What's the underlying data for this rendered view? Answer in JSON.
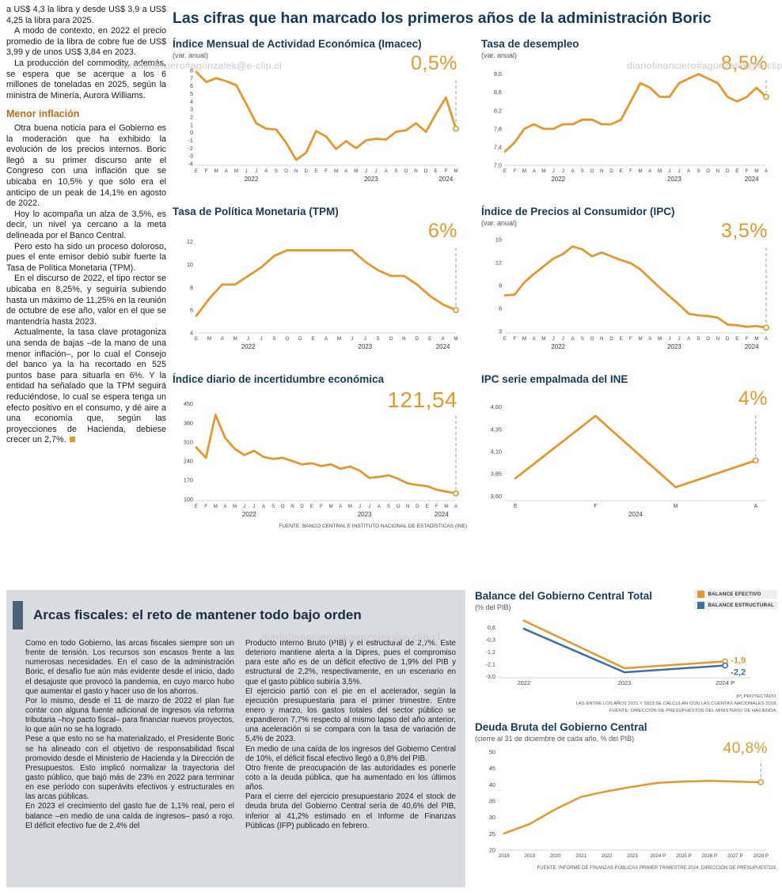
{
  "watermark": "diariofinanciero#agonzalek@e-clip.cl",
  "colors": {
    "accent_orange": "#E2982F",
    "line_blue": "#3F6F9E",
    "title_navy": "#14395E",
    "heading_orange": "#BC6C1C",
    "panel_gray": "#D9DCE1",
    "bar_slate": "#4A6377"
  },
  "left_article": {
    "top_paragraphs": [
      "a US$ 4,3 la libra y desde US$ 3,9 a US$ 4,25 la libra para 2025.",
      "A modo de contexto, en 2022 el precio promedio de la libra de cobre fue de US$ 3,99 y de unos US$ 3,84 en 2023.",
      "La producción del commodity, además, se espera que se acerque a los 6 millones de toneladas en 2025, según la ministra de Minería, Aurora Williams."
    ],
    "section_heading": "Menor inflación",
    "bottom_paragraphs": [
      "Otra buena noticia para el Gobierno es la moderación que ha exhibido la evolución de los precios internos. Boric llegó a su primer discurso ante el Congreso con una inflación que se ubicaba en 10,5% y que sólo era el anticipo de un peak de 14,1% en agosto de 2022.",
      "Hoy lo acompaña un alza de 3,5%, es decir, un nivel ya cercano a la meta delineada por el Banco Central.",
      "Pero esto ha sido un proceso doloroso, pues el ente emisor debió subir fuerte la Tasa de Política Monetaria (TPM).",
      "En el discurso de 2022, el tipo rector se ubicaba en 8,25%, y seguiría subiendo hasta un máximo de 11,25% en la reunión de octubre de ese año, valor en el que se mantendría hasta 2023.",
      "Actualmente, la tasa clave protagoniza una senda de bajas –de la mano de una menor inflación–, por lo cual el Consejo del banco ya la ha recortado en 525 puntos base para situarla en 6%. Y la entidad ha señalado que la TPM seguirá reduciéndose, lo cual se espera tenga un efecto positivo en el consumo, y dé aire a una economía que, según las proyecciones de Hacienda, debiese crecer un 2,7%."
    ]
  },
  "main": {
    "title": "Las cifras que han marcado los primeros años de la administración Boric",
    "source_note": "FUENTE: BANCO CENTRAL E INSTITUTO NACIONAL DE ESTADÍSTICAS (INE)"
  },
  "arcas": {
    "title": "Arcas fiscales: el reto de mantener todo bajo orden",
    "col1": [
      "Como en todo Gobierno, las arcas fiscales siempre son un frente de tensión. Los recursos son escasos frente a las numerosas necesidades. En el caso de la administración Boric, el desafío fue aún más evidente desde el inicio, dado el desajuste que provocó la pandemia, en cuyo marco hubo que aumentar el gasto y hacer uso de los ahorros.",
      "Por lo mismo, desde el 11 de marzo de 2022 el plan fue contar con alguna fuente adicional de ingresos vía reforma tributaria –hoy pacto fiscal– para financiar nuevos proyectos, lo que aún no se ha logrado.",
      "Pese a que esto no se ha materializado, el Presidente Boric se ha alineado con el objetivo de responsabilidad fiscal promovido desde el Ministerio de Hacienda y la Dirección de Presupuestos. Esto implicó normalizar la trayectoria del gasto público, que bajó más de 23% en 2022 para terminar en ese período con superávits efectivos y estructurales en las arcas públicas.",
      "En 2023 el crecimiento del gasto fue de 1,1% real, pero el balance –en medio de una caída de ingresos– pasó a rojo. El déficit efectivo fue de 2,4% del"
    ],
    "col2": [
      "Producto Interno Bruto (PIB) y el estructural de 2,7%. Este deterioro mantiene alerta a la Dipres, pues el compromiso para este año es de un déficit efectivo de 1,9% del PIB y estructural de 2,2%, respectivamente, en un escenario en que el gasto público subiría 3,5%.",
      "El ejercicio partió con el pie en el acelerador, según la ejecución presupuestaria para el primer trimestre. Entre enero y marzo, los gastos totales del sector público se expandieron 7,7% respecto al mismo lapso del año anterior, una aceleración si se compara con la tasa de variación de 5,4% de 2023.",
      "En medio de una caída de los ingresos del Gobierno Central de 10%, el déficit fiscal efectivo llegó a 0,8% del PIB.",
      "Otro frente de preocupación de las autoridades es ponerle coto a la deuda pública, que ha aumentado en los últimos años.",
      "Para el cierre del ejercicio presupuestario 2024 el stock de deuda bruta del Gobierno Central sería de 40,6% del PIB, inferior al 41,2% estimado en el Informe de Finanzas Públicas (IFP) publicado en febrero."
    ]
  },
  "chart_data": [
    {
      "id": "imacec",
      "type": "line",
      "title": "Índice Mensual de Actividad Económica (Imacec)",
      "subtitle": "(var. anual)",
      "highlight": "0,5%",
      "ylim": [
        -4.2,
        8.4
      ],
      "yticks": [
        {
          "v": 8,
          "label": "8"
        },
        {
          "v": 7,
          "label": "7"
        },
        {
          "v": 6,
          "label": "6"
        },
        {
          "v": 5,
          "label": "5"
        },
        {
          "v": 4,
          "label": "4"
        },
        {
          "v": 3,
          "label": "3"
        },
        {
          "v": 2,
          "label": "2"
        },
        {
          "v": 1,
          "label": "1"
        },
        {
          "v": 0,
          "label": "0"
        },
        {
          "v": -1,
          "label": "-1"
        },
        {
          "v": -2,
          "label": "-2"
        },
        {
          "v": -3,
          "label": "-3"
        },
        {
          "v": -4,
          "label": "-4"
        }
      ],
      "x_labels": [
        "E",
        "F",
        "M",
        "A",
        "M",
        "J",
        "J",
        "A",
        "S",
        "O",
        "N",
        "D",
        "E",
        "F",
        "M",
        "A",
        "M",
        "J",
        "J",
        "A",
        "S",
        "O",
        "N",
        "D",
        "E",
        "F",
        "M"
      ],
      "years": [
        {
          "label": "2022",
          "from": 0,
          "to": 11
        },
        {
          "label": "2023",
          "from": 12,
          "to": 23
        },
        {
          "label": "2024",
          "from": 24,
          "to": 26
        }
      ],
      "x_label_size": 6.2,
      "series": [
        {
          "name": "Imacec",
          "color": "#E2982F",
          "width": 2.8,
          "values": [
            7.8,
            6.5,
            7.0,
            6.6,
            6.1,
            3.7,
            1.2,
            0.5,
            0.4,
            -1.3,
            -3.5,
            -2.6,
            0.2,
            -0.5,
            -2.1,
            -1.1,
            -2.0,
            -1.0,
            -0.8,
            -0.9,
            0.1,
            0.3,
            1.2,
            0.1,
            2.4,
            4.5,
            0.5
          ]
        }
      ]
    },
    {
      "id": "desempleo",
      "type": "line",
      "title": "Tasa de desempleo",
      "subtitle": "(var. anual)",
      "highlight": "8,5%",
      "ylim": [
        7.0,
        9.15
      ],
      "yticks": [
        {
          "v": 9.0,
          "label": "9,0"
        },
        {
          "v": 8.6,
          "label": "8,6"
        },
        {
          "v": 8.2,
          "label": "8,2"
        },
        {
          "v": 7.8,
          "label": "7,8"
        },
        {
          "v": 7.4,
          "label": "7,4"
        },
        {
          "v": 7.0,
          "label": "7,0"
        }
      ],
      "x_labels": [
        "E",
        "F",
        "M",
        "A",
        "M",
        "J",
        "J",
        "A",
        "S",
        "O",
        "N",
        "D",
        "E",
        "F",
        "M",
        "A",
        "M",
        "J",
        "J",
        "A",
        "S",
        "O",
        "N",
        "D",
        "E",
        "F",
        "M",
        "A"
      ],
      "years": [
        {
          "label": "2022",
          "from": 0,
          "to": 11
        },
        {
          "label": "2023",
          "from": 12,
          "to": 23
        },
        {
          "label": "2024",
          "from": 24,
          "to": 27
        }
      ],
      "x_label_size": 6.2,
      "series": [
        {
          "name": "Tasa de desempleo",
          "color": "#E2982F",
          "width": 2.8,
          "values": [
            7.3,
            7.5,
            7.8,
            7.9,
            7.8,
            7.8,
            7.9,
            7.9,
            8.0,
            8.0,
            7.9,
            7.9,
            8.0,
            8.4,
            8.8,
            8.7,
            8.5,
            8.5,
            8.8,
            8.9,
            9.0,
            8.9,
            8.8,
            8.5,
            8.4,
            8.5,
            8.7,
            8.5
          ]
        }
      ]
    },
    {
      "id": "tpm",
      "type": "line",
      "title": "Tasa de Política Monetaria (TPM)",
      "highlight": "6%",
      "ylim": [
        4,
        12.6
      ],
      "yticks": [
        {
          "v": 12,
          "label": "12"
        },
        {
          "v": 10,
          "label": "10"
        },
        {
          "v": 8,
          "label": "8"
        },
        {
          "v": 6,
          "label": "6"
        },
        {
          "v": 4,
          "label": "4"
        }
      ],
      "x_labels": [
        "E",
        "M",
        "A",
        "M",
        "J",
        "J",
        "S",
        "O",
        "D",
        "E",
        "A",
        "M",
        "J",
        "J",
        "S",
        "O",
        "N",
        "D",
        "E",
        "A",
        "M"
      ],
      "years": [
        {
          "label": "2022",
          "from": 0,
          "to": 8
        },
        {
          "label": "2023",
          "from": 9,
          "to": 17
        },
        {
          "label": "2024",
          "from": 18,
          "to": 20
        }
      ],
      "x_label_size": 6.2,
      "series": [
        {
          "name": "TPM",
          "color": "#E2982F",
          "width": 2.8,
          "values": [
            5.5,
            7.0,
            8.25,
            8.25,
            9.0,
            9.75,
            10.75,
            11.25,
            11.25,
            11.25,
            11.25,
            11.25,
            11.25,
            10.25,
            9.5,
            9.0,
            9.0,
            8.25,
            7.25,
            6.5,
            6.0
          ]
        }
      ]
    },
    {
      "id": "ipc",
      "type": "line",
      "title": "Índice de Precios al Consumidor (IPC)",
      "subtitle": "(var. anual)",
      "highlight": "3,5%",
      "ylim": [
        2.8,
        15.6
      ],
      "yticks": [
        {
          "v": 15,
          "label": "15"
        },
        {
          "v": 12,
          "label": "12"
        },
        {
          "v": 9,
          "label": "9"
        },
        {
          "v": 6,
          "label": "6"
        },
        {
          "v": 3,
          "label": "3"
        }
      ],
      "x_labels": [
        "E",
        "F",
        "M",
        "A",
        "M",
        "J",
        "J",
        "A",
        "S",
        "O",
        "N",
        "D",
        "E",
        "F",
        "M",
        "A",
        "M",
        "J",
        "J",
        "A",
        "S",
        "O",
        "N",
        "D",
        "E",
        "F",
        "M",
        "A"
      ],
      "years": [
        {
          "label": "2022",
          "from": 0,
          "to": 11
        },
        {
          "label": "2023",
          "from": 12,
          "to": 23
        },
        {
          "label": "2024",
          "from": 24,
          "to": 27
        }
      ],
      "x_label_size": 6.2,
      "series": [
        {
          "name": "IPC",
          "color": "#E2982F",
          "width": 2.8,
          "values": [
            7.7,
            7.8,
            9.4,
            10.5,
            11.5,
            12.5,
            13.1,
            14.1,
            13.7,
            12.8,
            13.3,
            12.8,
            12.3,
            11.9,
            11.1,
            9.9,
            8.7,
            7.6,
            6.5,
            5.3,
            5.1,
            5.0,
            4.8,
            3.9,
            3.8,
            3.6,
            3.7,
            3.5
          ]
        }
      ]
    },
    {
      "id": "incertidumbre",
      "type": "line",
      "title": "Índice diario de incertidumbre económica",
      "highlight": "121,54",
      "ylim": [
        95,
        455
      ],
      "yticks": [
        {
          "v": 450,
          "label": "450"
        },
        {
          "v": 380,
          "label": "380"
        },
        {
          "v": 310,
          "label": "310"
        },
        {
          "v": 240,
          "label": "240"
        },
        {
          "v": 170,
          "label": "170"
        },
        {
          "v": 100,
          "label": "100"
        }
      ],
      "x_labels": [
        "E",
        "F",
        "M",
        "A",
        "M",
        "J",
        "J",
        "A",
        "S",
        "O",
        "N",
        "D",
        "E",
        "F",
        "M",
        "A",
        "M",
        "J",
        "J",
        "A",
        "S",
        "O",
        "N",
        "D",
        "E",
        "F",
        "M",
        "A"
      ],
      "years": [
        {
          "label": "2022",
          "from": 0,
          "to": 11
        },
        {
          "label": "2023",
          "from": 12,
          "to": 23
        },
        {
          "label": "2024",
          "from": 24,
          "to": 27
        }
      ],
      "x_label_size": 6.2,
      "series": [
        {
          "name": "Incertidumbre económica",
          "color": "#E2982F",
          "width": 2.8,
          "values": [
            290,
            252,
            410,
            325,
            285,
            262,
            278,
            255,
            248,
            252,
            240,
            228,
            232,
            222,
            228,
            212,
            220,
            205,
            178,
            182,
            188,
            175,
            158,
            152,
            148,
            135,
            128,
            121.54
          ]
        }
      ]
    },
    {
      "id": "ipc_ine",
      "type": "line",
      "title": "IPC serie empalmada del INE",
      "highlight": "4%",
      "ylim": [
        3.55,
        4.65
      ],
      "yticks": [
        {
          "v": 4.6,
          "label": "4,60"
        },
        {
          "v": 4.35,
          "label": "4,35"
        },
        {
          "v": 4.1,
          "label": "4,10"
        },
        {
          "v": 3.85,
          "label": "3,85"
        },
        {
          "v": 3.6,
          "label": "3,60"
        }
      ],
      "x_labels": [
        "E",
        "F",
        "M",
        "A"
      ],
      "years": [
        {
          "label": "2024",
          "from": 0,
          "to": 3
        }
      ],
      "x_label_size": 7,
      "xpad": 0.04,
      "series": [
        {
          "name": "IPC serie empalmada",
          "color": "#E2982F",
          "width": 2.8,
          "values": [
            3.8,
            4.5,
            3.7,
            4.0
          ]
        }
      ]
    },
    {
      "id": "balance",
      "type": "line",
      "title": "Balance del Gobierno Central Total",
      "subtitle": "(% del PIB)",
      "ylim": [
        -3.1,
        1.2
      ],
      "yticks": [
        {
          "v": 0.6,
          "label": "0,6"
        },
        {
          "v": -0.3,
          "label": "-0,3"
        },
        {
          "v": -1.2,
          "label": "-1,2"
        },
        {
          "v": -2.1,
          "label": "-2,1"
        },
        {
          "v": -3.0,
          "label": "-3,0"
        }
      ],
      "categories": [
        "2022",
        "2023",
        "2024 P"
      ],
      "x_label_size": 7.5,
      "xpad": 0.1,
      "margin_right": 34,
      "series": [
        {
          "name": "BALANCE EFECTIVO",
          "color": "#E2982F",
          "width": 2.5,
          "values": [
            1.1,
            -2.4,
            -1.9
          ],
          "end_label": "-1,9",
          "end_label_dy": -1
        },
        {
          "name": "BALANCE ESTRUCTURAL",
          "color": "#3F6F9E",
          "width": 2.5,
          "values": [
            0.5,
            -2.7,
            -2.2
          ],
          "end_label": "-2,2",
          "end_label_dy": 9
        }
      ],
      "notes": [
        "(P) PROYECTADO.",
        "LAS ENTRE LOS AÑOS 2021 Y 2023 SE CALCULAN CON LAS CUENTAS NACIONALES 2018.",
        "FUENTE: DIRECCIÓN DE PRESUPUESTOS DEL MINISTERIO DE HACIENDA."
      ]
    },
    {
      "id": "deuda",
      "type": "line",
      "title": "Deuda Bruta del Gobierno Central",
      "subtitle": "(cierre al 31 de diciembre de cada año, % del PIB)",
      "highlight": "40,8%",
      "ylim": [
        20,
        50.5
      ],
      "yticks": [
        {
          "v": 50,
          "label": "50"
        },
        {
          "v": 45,
          "label": "45"
        },
        {
          "v": 40,
          "label": "40"
        },
        {
          "v": 35,
          "label": "35"
        },
        {
          "v": 30,
          "label": "30"
        },
        {
          "v": 25,
          "label": "25"
        },
        {
          "v": 20,
          "label": "20"
        }
      ],
      "categories": [
        "2018",
        "2019",
        "2020",
        "2021",
        "2022",
        "2023",
        "2024 P",
        "2025 P",
        "2026 P",
        "2027 P",
        "2028 P"
      ],
      "x_label_size": 6.2,
      "xpad": 0.02,
      "series": [
        {
          "name": "Deuda bruta",
          "color": "#E2982F",
          "width": 2.5,
          "values": [
            25.1,
            28.0,
            32.5,
            36.3,
            38.0,
            39.4,
            40.6,
            41.0,
            41.2,
            41.0,
            40.8
          ]
        }
      ],
      "source": "FUENTE: INFORME DE FINANZAS PÚBLICAS PRIMER TRIMESTRE 2024, DIRECCIÓN DE PRESUPUESTOS."
    }
  ]
}
